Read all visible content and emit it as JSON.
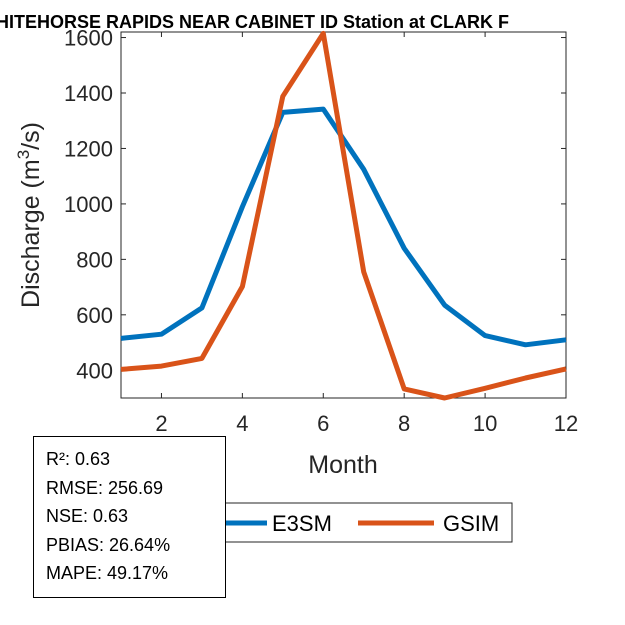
{
  "chart_data": {
    "type": "line",
    "title": "HITEHORSE RAPIDS NEAR CABINET ID  Station at  CLARK F",
    "xlabel": "Month",
    "ylabel_main": "Discharge (m",
    "ylabel_sup": "3",
    "ylabel_tail": "/s)",
    "xlim": [
      1,
      12
    ],
    "ylim": [
      300,
      1620
    ],
    "xticks": [
      2,
      4,
      6,
      8,
      10,
      12
    ],
    "yticks": [
      400,
      600,
      800,
      1000,
      1200,
      1400,
      1600
    ],
    "x": [
      1,
      2,
      3,
      4,
      5,
      6,
      7,
      8,
      9,
      10,
      11,
      12
    ],
    "series": [
      {
        "name": "E3SM",
        "color": "#0072BD",
        "values": [
          515,
          530,
          625,
          990,
          1330,
          1342,
          1125,
          840,
          635,
          525,
          492,
          510
        ]
      },
      {
        "name": "GSIM",
        "color": "#D95319",
        "values": [
          403,
          415,
          443,
          702,
          1388,
          1615,
          755,
          333,
          300,
          335,
          372,
          405
        ]
      }
    ],
    "legend_position": "bottom-center",
    "grid": false
  },
  "stats": {
    "r2": "R²: 0.63",
    "rmse": "RMSE: 256.69",
    "nse": "NSE: 0.63",
    "pbias": "PBIAS: 26.64%",
    "mape": "MAPE: 49.17%"
  }
}
